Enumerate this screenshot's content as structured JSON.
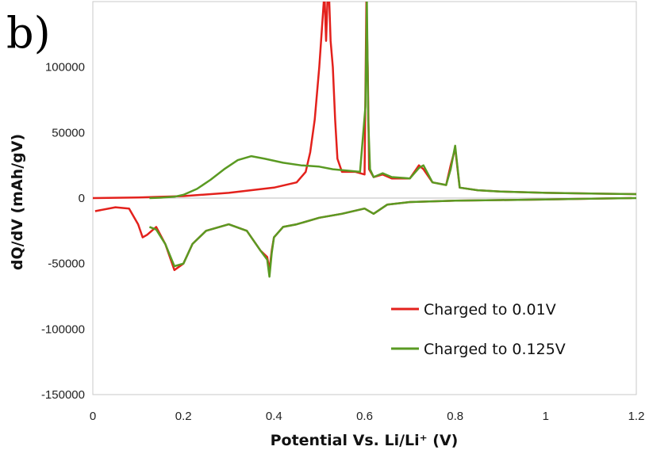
{
  "chart_data": {
    "type": "line",
    "panel_label": "b)",
    "xlabel": "Potential Vs. Li/Li⁺  (V)",
    "ylabel": "dQ/dV  (mAh/gV)",
    "xlim": [
      0,
      1.2
    ],
    "ylim": [
      -150000,
      150000
    ],
    "x_ticks": [
      0,
      0.2,
      0.4,
      0.6,
      0.8,
      1,
      1.2
    ],
    "x_tick_labels": [
      "0",
      "0.2",
      "0.4",
      "0.6",
      "0.8",
      "1",
      "1.2"
    ],
    "y_ticks": [
      -150000,
      -100000,
      -50000,
      0,
      50000,
      100000
    ],
    "y_tick_labels": [
      "-150000",
      "-100000",
      "-50000",
      "0",
      "50000",
      "100000"
    ],
    "grid": false,
    "legend_position": "bottom-right",
    "series": [
      {
        "name": "Charged to 0.01V",
        "color": "#e3211c",
        "segments": [
          {
            "x": [
              0,
              0.1,
              0.2,
              0.3,
              0.4,
              0.45,
              0.47,
              0.48,
              0.49,
              0.5,
              0.51,
              0.512,
              0.515,
              0.518,
              0.52,
              0.522,
              0.525,
              0.53,
              0.535,
              0.54,
              0.55,
              0.56,
              0.58,
              0.6,
              0.604,
              0.607,
              0.61,
              0.62,
              0.64,
              0.66,
              0.7,
              0.72,
              0.73,
              0.75,
              0.78,
              0.79,
              0.8,
              0.81,
              0.85,
              0.9,
              1.0,
              1.1,
              1.2
            ],
            "y": [
              0,
              500,
              1500,
              4000,
              8000,
              12000,
              20000,
              35000,
              60000,
              100000,
              150000,
              150000,
              120000,
              150000,
              150000,
              150000,
              120000,
              100000,
              60000,
              30000,
              20000,
              20000,
              20000,
              18000,
              150000,
              100000,
              22000,
              16000,
              18000,
              15000,
              15000,
              25000,
              22000,
              12000,
              10000,
              25000,
              38000,
              8000,
              6000,
              5000,
              4000,
              3500,
              3000
            ]
          },
          {
            "x": [
              0.005,
              0.05,
              0.08,
              0.1,
              0.11,
              0.12,
              0.14,
              0.16,
              0.18,
              0.2,
              0.22,
              0.25,
              0.3,
              0.34,
              0.37,
              0.385,
              0.39,
              0.395,
              0.4,
              0.42,
              0.45,
              0.5,
              0.55,
              0.6,
              0.62,
              0.65,
              0.7,
              0.8,
              0.9,
              1.0,
              1.1,
              1.19
            ],
            "y": [
              -10000,
              -7000,
              -8000,
              -20000,
              -30000,
              -28000,
              -22000,
              -35000,
              -55000,
              -50000,
              -35000,
              -25000,
              -20000,
              -25000,
              -40000,
              -45000,
              -55000,
              -40000,
              -30000,
              -22000,
              -20000,
              -15000,
              -12000,
              -8000,
              -12000,
              -5000,
              -3000,
              -2000,
              -1500,
              -1000,
              -500,
              0
            ]
          }
        ]
      },
      {
        "name": "Charged to 0.125V",
        "color": "#5a9a22",
        "segments": [
          {
            "x": [
              0.125,
              0.15,
              0.18,
              0.2,
              0.23,
              0.26,
              0.29,
              0.32,
              0.35,
              0.38,
              0.42,
              0.46,
              0.5,
              0.53,
              0.56,
              0.59,
              0.602,
              0.605,
              0.608,
              0.612,
              0.62,
              0.64,
              0.66,
              0.7,
              0.72,
              0.73,
              0.75,
              0.78,
              0.79,
              0.8,
              0.81,
              0.85,
              0.9,
              1.0,
              1.1,
              1.2
            ],
            "y": [
              0,
              300,
              1000,
              2500,
              7000,
              14000,
              22000,
              29000,
              32000,
              30000,
              27000,
              25000,
              24000,
              22000,
              21000,
              20000,
              70000,
              150000,
              60000,
              22000,
              16000,
              19000,
              16000,
              15000,
              23000,
              25000,
              12000,
              10000,
              22000,
              40000,
              8000,
              6000,
              5000,
              4000,
              3500,
              3000
            ]
          },
          {
            "x": [
              0.125,
              0.14,
              0.16,
              0.18,
              0.2,
              0.22,
              0.25,
              0.3,
              0.34,
              0.37,
              0.385,
              0.39,
              0.395,
              0.4,
              0.42,
              0.45,
              0.5,
              0.55,
              0.6,
              0.62,
              0.65,
              0.7,
              0.8,
              0.9,
              1.0,
              1.1,
              1.2
            ],
            "y": [
              -22000,
              -24000,
              -35000,
              -52000,
              -50000,
              -35000,
              -25000,
              -20000,
              -25000,
              -40000,
              -47000,
              -60000,
              -42000,
              -30000,
              -22000,
              -20000,
              -15000,
              -12000,
              -8000,
              -12000,
              -5000,
              -3000,
              -2000,
              -1500,
              -1000,
              -500,
              0
            ]
          }
        ]
      }
    ]
  }
}
